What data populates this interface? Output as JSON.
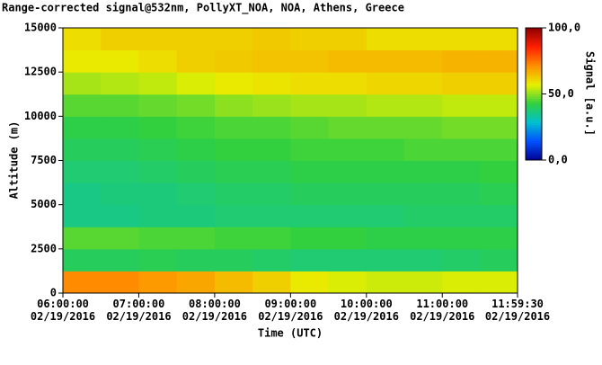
{
  "chart_data": {
    "type": "heatmap",
    "title": "Range-corrected signal@532nm, PollyXT_NOA, NOA, Athens, Greece",
    "x_label": "Time (UTC)",
    "y_label": "Altitude (m)",
    "colorbar_label": "Signal [a.u.]",
    "x_bins": [
      6,
      6.5,
      7,
      7.5,
      8,
      8.5,
      9,
      9.5,
      10,
      10.5,
      11,
      11.5,
      11.991667
    ],
    "y_bins": [
      0,
      1250,
      2500,
      3750,
      5000,
      6250,
      7500,
      8750,
      10000,
      11250,
      12500,
      13750,
      15000
    ],
    "values": [
      [
        72,
        72,
        70,
        68,
        65,
        62,
        58,
        56,
        55,
        55,
        56,
        56
      ],
      [
        40,
        40,
        41,
        40,
        40,
        39,
        38,
        38,
        38,
        38,
        39,
        40
      ],
      [
        46,
        46,
        45,
        45,
        44,
        44,
        43,
        43,
        42,
        42,
        42,
        42
      ],
      [
        36,
        36,
        37,
        37,
        38,
        38,
        38,
        38,
        38,
        39,
        39,
        39
      ],
      [
        36,
        37,
        37,
        38,
        39,
        39,
        40,
        40,
        40,
        40,
        40,
        41
      ],
      [
        38,
        38,
        39,
        40,
        41,
        41,
        42,
        42,
        42,
        42,
        42,
        43
      ],
      [
        40,
        40,
        41,
        42,
        43,
        43,
        44,
        44,
        44,
        45,
        45,
        45
      ],
      [
        42,
        42,
        43,
        44,
        45,
        45,
        46,
        47,
        47,
        47,
        48,
        48
      ],
      [
        46,
        46,
        47,
        48,
        50,
        51,
        52,
        52,
        53,
        53,
        54,
        54
      ],
      [
        52,
        53,
        54,
        56,
        58,
        59,
        60,
        60,
        61,
        61,
        62,
        62
      ],
      [
        58,
        58,
        60,
        62,
        63,
        64,
        64,
        65,
        65,
        65,
        66,
        66
      ],
      [
        60,
        62,
        62,
        62,
        62,
        63,
        62,
        62,
        60,
        60,
        60,
        60
      ]
    ],
    "xlim": [
      6,
      11.991667
    ],
    "xticks": [
      {
        "value": 6,
        "label": "06:00:00\n02/19/2016"
      },
      {
        "value": 7,
        "label": "07:00:00\n02/19/2016"
      },
      {
        "value": 8,
        "label": "08:00:00\n02/19/2016"
      },
      {
        "value": 9,
        "label": "09:00:00\n02/19/2016"
      },
      {
        "value": 10,
        "label": "10:00:00\n02/19/2016"
      },
      {
        "value": 11,
        "label": "11:00:00\n02/19/2016"
      },
      {
        "value": 11.991667,
        "label": "11:59:30\n02/19/2016"
      }
    ],
    "ylim": [
      0,
      15000
    ],
    "yticks": [
      0,
      2500,
      5000,
      7500,
      10000,
      12500,
      15000
    ],
    "zlim": [
      0,
      100
    ],
    "zticks": [
      {
        "value": 0,
        "label": "0,0"
      },
      {
        "value": 50,
        "label": "50,0"
      },
      {
        "value": 100,
        "label": "100,0"
      }
    ],
    "colormap": [
      "#000090",
      "#0050ff",
      "#00c0d0",
      "#30d040",
      "#e8f000",
      "#ff9000",
      "#ff2000",
      "#900000"
    ]
  }
}
